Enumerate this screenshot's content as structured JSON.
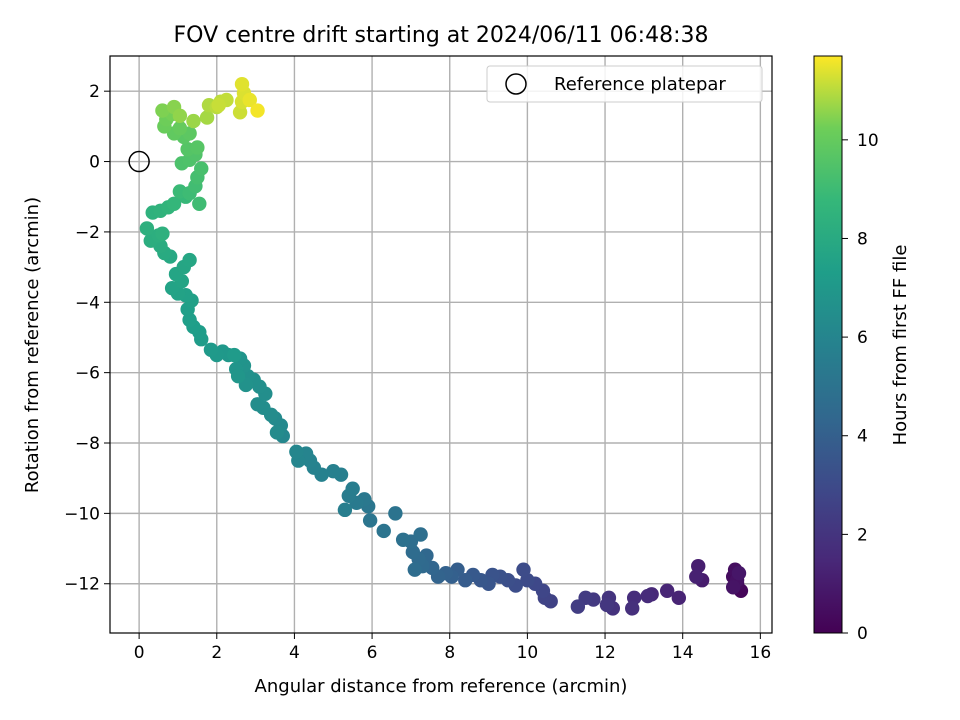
{
  "chart_data": {
    "type": "scatter",
    "title": "FOV centre drift starting at 2024/06/11 06:48:38",
    "xlabel": "Angular distance from reference (arcmin)",
    "ylabel": "Rotation from reference (arcmin)",
    "xlim": [
      -0.75,
      16.3
    ],
    "ylim": [
      -13.4,
      3.0
    ],
    "xticks": [
      0,
      2,
      4,
      6,
      8,
      10,
      12,
      14,
      16
    ],
    "yticks": [
      2,
      0,
      -2,
      -4,
      -6,
      -8,
      -10,
      -12
    ],
    "xtick_labels": [
      "0",
      "2",
      "4",
      "6",
      "8",
      "10",
      "12",
      "14",
      "16"
    ],
    "ytick_labels": [
      "2",
      "0",
      "−2",
      "−4",
      "−6",
      "−8",
      "−10",
      "−12"
    ],
    "grid": true,
    "colormap": "viridis",
    "colorbar": {
      "label": "Hours from first FF file",
      "range": [
        0,
        11.7
      ],
      "ticks": [
        0,
        2,
        4,
        6,
        8,
        10
      ],
      "tick_labels": [
        "0",
        "2",
        "4",
        "6",
        "8",
        "10"
      ]
    },
    "legend": {
      "position": "top-right",
      "label": "Reference platepar"
    },
    "reference_point": {
      "x": 0,
      "y": 0
    },
    "points": [
      [
        15.5,
        -12.2,
        0.2
      ],
      [
        15.4,
        -12.0,
        0.3
      ],
      [
        15.3,
        -11.8,
        0.4
      ],
      [
        15.35,
        -11.6,
        0.5
      ],
      [
        15.4,
        -11.9,
        0.6
      ],
      [
        15.3,
        -12.1,
        0.7
      ],
      [
        15.45,
        -11.7,
        0.8
      ],
      [
        14.5,
        -11.9,
        1.0
      ],
      [
        14.4,
        -11.5,
        1.1
      ],
      [
        14.35,
        -11.8,
        1.2
      ],
      [
        13.9,
        -12.4,
        1.3
      ],
      [
        13.6,
        -12.2,
        1.4
      ],
      [
        13.2,
        -12.3,
        1.5
      ],
      [
        13.1,
        -12.35,
        1.6
      ],
      [
        12.75,
        -12.4,
        1.7
      ],
      [
        12.7,
        -12.7,
        1.8
      ],
      [
        12.2,
        -12.7,
        1.9
      ],
      [
        12.1,
        -12.4,
        2.0
      ],
      [
        12.05,
        -12.6,
        2.1
      ],
      [
        11.7,
        -12.45,
        2.2
      ],
      [
        11.5,
        -12.4,
        2.3
      ],
      [
        11.3,
        -12.65,
        2.4
      ],
      [
        10.6,
        -12.5,
        2.6
      ],
      [
        10.45,
        -12.4,
        2.7
      ],
      [
        10.4,
        -12.2,
        2.8
      ],
      [
        10.2,
        -12.0,
        2.9
      ],
      [
        10.0,
        -11.9,
        3.0
      ],
      [
        9.9,
        -11.6,
        3.05
      ],
      [
        9.7,
        -12.05,
        3.1
      ],
      [
        9.5,
        -11.9,
        3.2
      ],
      [
        9.3,
        -11.8,
        3.3
      ],
      [
        9.1,
        -11.75,
        3.4
      ],
      [
        9.0,
        -12.0,
        3.5
      ],
      [
        8.8,
        -11.9,
        3.6
      ],
      [
        8.6,
        -11.75,
        3.7
      ],
      [
        8.4,
        -11.9,
        3.8
      ],
      [
        8.2,
        -11.6,
        3.9
      ],
      [
        8.05,
        -11.8,
        4.0
      ],
      [
        7.9,
        -11.7,
        4.1
      ],
      [
        7.7,
        -11.8,
        4.2
      ],
      [
        7.55,
        -11.55,
        4.3
      ],
      [
        7.4,
        -11.2,
        4.4
      ],
      [
        7.3,
        -11.5,
        4.5
      ],
      [
        7.2,
        -11.3,
        4.55
      ],
      [
        7.05,
        -11.1,
        4.6
      ],
      [
        7.1,
        -11.6,
        4.65
      ],
      [
        7.0,
        -10.8,
        4.7
      ],
      [
        7.25,
        -10.6,
        4.8
      ],
      [
        6.8,
        -10.75,
        4.9
      ],
      [
        6.6,
        -10.0,
        5.0
      ],
      [
        6.3,
        -10.5,
        5.05
      ],
      [
        5.95,
        -10.2,
        5.1
      ],
      [
        5.9,
        -9.8,
        5.2
      ],
      [
        5.8,
        -9.6,
        5.3
      ],
      [
        5.6,
        -9.7,
        5.4
      ],
      [
        5.4,
        -9.5,
        5.5
      ],
      [
        5.5,
        -9.3,
        5.55
      ],
      [
        5.3,
        -9.9,
        5.6
      ],
      [
        5.2,
        -8.9,
        5.7
      ],
      [
        5.0,
        -8.8,
        5.75
      ],
      [
        4.7,
        -8.9,
        5.8
      ],
      [
        4.5,
        -8.7,
        5.85
      ],
      [
        4.4,
        -8.5,
        5.9
      ],
      [
        4.3,
        -8.3,
        5.95
      ],
      [
        4.1,
        -8.5,
        6.0
      ],
      [
        4.05,
        -8.25,
        6.05
      ],
      [
        3.7,
        -7.8,
        6.1
      ],
      [
        3.65,
        -7.5,
        6.2
      ],
      [
        3.5,
        -7.3,
        6.25
      ],
      [
        3.55,
        -7.7,
        6.3
      ],
      [
        3.4,
        -7.2,
        6.35
      ],
      [
        3.2,
        -7.0,
        6.4
      ],
      [
        3.05,
        -6.9,
        6.45
      ],
      [
        3.25,
        -6.6,
        6.5
      ],
      [
        3.1,
        -6.4,
        6.55
      ],
      [
        2.95,
        -6.2,
        6.6
      ],
      [
        2.8,
        -6.1,
        6.65
      ],
      [
        2.75,
        -6.35,
        6.7
      ],
      [
        2.7,
        -5.8,
        6.75
      ],
      [
        2.6,
        -5.6,
        6.8
      ],
      [
        2.5,
        -5.9,
        6.85
      ],
      [
        2.55,
        -6.1,
        6.9
      ],
      [
        2.3,
        -5.5,
        6.95
      ],
      [
        2.15,
        -5.4,
        7.0
      ],
      [
        2.0,
        -5.5,
        7.05
      ],
      [
        1.85,
        -5.35,
        7.1
      ],
      [
        2.45,
        -5.5,
        7.15
      ],
      [
        1.6,
        -5.05,
        7.2
      ],
      [
        1.55,
        -4.85,
        7.25
      ],
      [
        1.4,
        -4.7,
        7.3
      ],
      [
        1.3,
        -4.5,
        7.35
      ],
      [
        1.25,
        -4.2,
        7.4
      ],
      [
        1.35,
        -3.95,
        7.45
      ],
      [
        1.2,
        -3.8,
        7.5
      ],
      [
        1.0,
        -3.75,
        7.55
      ],
      [
        0.85,
        -3.6,
        7.6
      ],
      [
        1.1,
        -3.4,
        7.65
      ],
      [
        0.95,
        -3.2,
        7.7
      ],
      [
        1.15,
        -3.0,
        7.75
      ],
      [
        1.3,
        -2.8,
        7.8
      ],
      [
        0.8,
        -2.7,
        7.9
      ],
      [
        0.65,
        -2.6,
        8.0
      ],
      [
        0.55,
        -2.4,
        8.1
      ],
      [
        0.3,
        -2.25,
        8.2
      ],
      [
        0.5,
        -2.1,
        8.25
      ],
      [
        0.2,
        -1.9,
        8.3
      ],
      [
        0.6,
        -2.05,
        8.35
      ],
      [
        0.35,
        -1.45,
        8.4
      ],
      [
        0.55,
        -1.4,
        8.5
      ],
      [
        0.75,
        -1.3,
        8.6
      ],
      [
        0.9,
        -1.2,
        8.7
      ],
      [
        1.2,
        -1.0,
        8.8
      ],
      [
        1.05,
        -0.85,
        8.9
      ],
      [
        1.3,
        -0.9,
        9.0
      ],
      [
        1.55,
        -1.2,
        9.05
      ],
      [
        1.45,
        -0.7,
        9.1
      ],
      [
        1.5,
        -0.45,
        9.2
      ],
      [
        1.6,
        -0.2,
        9.3
      ],
      [
        1.1,
        -0.05,
        9.4
      ],
      [
        1.3,
        0.05,
        9.45
      ],
      [
        1.45,
        0.2,
        9.5
      ],
      [
        1.25,
        0.35,
        9.6
      ],
      [
        1.5,
        0.4,
        9.65
      ],
      [
        1.15,
        0.7,
        9.7
      ],
      [
        1.3,
        0.8,
        9.8
      ],
      [
        0.9,
        0.8,
        9.9
      ],
      [
        1.05,
        0.95,
        10.0
      ],
      [
        0.65,
        1.0,
        10.1
      ],
      [
        0.7,
        1.2,
        10.2
      ],
      [
        0.85,
        1.35,
        10.3
      ],
      [
        0.6,
        1.45,
        10.4
      ],
      [
        0.9,
        1.55,
        10.5
      ],
      [
        1.05,
        1.3,
        10.6
      ],
      [
        1.4,
        1.15,
        10.7
      ],
      [
        1.75,
        1.25,
        10.8
      ],
      [
        1.8,
        1.6,
        10.9
      ],
      [
        2.0,
        1.55,
        11.0
      ],
      [
        2.1,
        1.7,
        11.05
      ],
      [
        2.25,
        1.75,
        11.1
      ],
      [
        2.05,
        1.6,
        11.15
      ],
      [
        2.6,
        1.4,
        11.2
      ],
      [
        2.65,
        1.7,
        11.3
      ],
      [
        2.7,
        1.95,
        11.35
      ],
      [
        2.65,
        2.2,
        11.4
      ],
      [
        2.85,
        1.75,
        11.5
      ],
      [
        3.05,
        1.45,
        11.6
      ]
    ]
  }
}
